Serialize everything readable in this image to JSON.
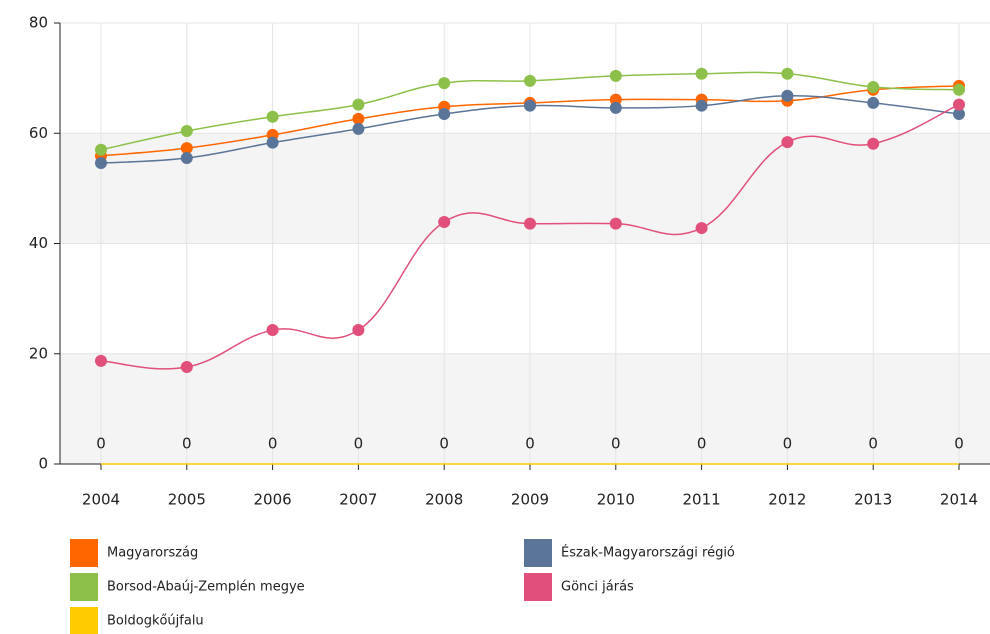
{
  "chart_data": {
    "type": "line",
    "categories": [
      "2004",
      "2005",
      "2006",
      "2007",
      "2008",
      "2009",
      "2010",
      "2011",
      "2012",
      "2013",
      "2014"
    ],
    "series": [
      {
        "name": "Magyarország",
        "color": "#ff6600",
        "values": [
          55.9,
          57.3,
          59.7,
          62.6,
          64.8,
          65.5,
          66.1,
          66.1,
          65.9,
          67.9,
          68.6
        ]
      },
      {
        "name": "Észak-Magyarországi régió",
        "color": "#5b7598",
        "values": [
          54.6,
          55.5,
          58.3,
          60.8,
          63.5,
          65.0,
          64.6,
          65.0,
          66.8,
          65.5,
          63.5
        ]
      },
      {
        "name": "Borsod-Abaúj-Zemplén megye",
        "color": "#8dc04a",
        "values": [
          57.0,
          60.4,
          63.0,
          65.2,
          69.1,
          69.5,
          70.4,
          70.8,
          70.8,
          68.4,
          67.9
        ]
      },
      {
        "name": "Gönci járás",
        "color": "#e0507a",
        "values": [
          18.7,
          17.6,
          24.3,
          24.3,
          43.9,
          43.6,
          43.6,
          42.8,
          58.4,
          58.1,
          65.2
        ]
      },
      {
        "name": "Boldogkőújfalu",
        "color": "#ffcc00",
        "values": [
          0,
          0,
          0,
          0,
          0,
          0,
          0,
          0,
          0,
          0,
          0
        ],
        "data_labels": true
      }
    ],
    "ylim": [
      0,
      80
    ],
    "yticks": [
      0,
      20,
      40,
      60,
      80
    ],
    "grid": true
  }
}
